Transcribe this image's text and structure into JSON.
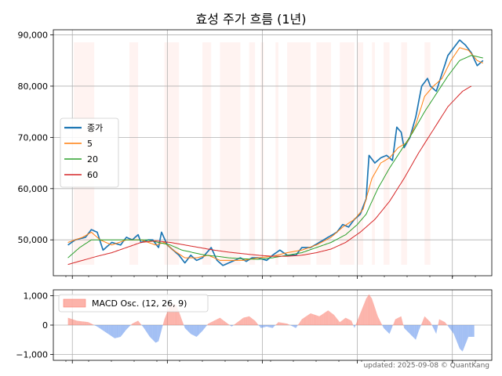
{
  "chart_data": [
    {
      "type": "line",
      "title": "효성 주가 흐름 (1년)",
      "ylim": [
        43000,
        91000
      ],
      "yticks": [
        50000,
        60000,
        70000,
        80000,
        90000
      ],
      "ytick_labels": [
        "50,000",
        "60,000",
        "70,000",
        "80,000",
        "90,000"
      ],
      "grid": true,
      "legend_position": "center-left",
      "x_count": 248,
      "series": [
        {
          "name": "종가",
          "color": "#1f77b4",
          "keypoints": [
            [
              0,
              49000
            ],
            [
              5,
              50000
            ],
            [
              12,
              50500
            ],
            [
              16,
              52000
            ],
            [
              20,
              51500
            ],
            [
              24,
              48000
            ],
            [
              30,
              49500
            ],
            [
              36,
              49000
            ],
            [
              40,
              50500
            ],
            [
              44,
              50000
            ],
            [
              48,
              51000
            ],
            [
              50,
              49500
            ],
            [
              55,
              50000
            ],
            [
              58,
              50000
            ],
            [
              62,
              48500
            ],
            [
              64,
              51500
            ],
            [
              68,
              49000
            ],
            [
              72,
              48000
            ],
            [
              76,
              47000
            ],
            [
              80,
              45500
            ],
            [
              84,
              47000
            ],
            [
              88,
              46000
            ],
            [
              92,
              46500
            ],
            [
              98,
              48500
            ],
            [
              102,
              46000
            ],
            [
              106,
              45000
            ],
            [
              110,
              45500
            ],
            [
              114,
              46000
            ],
            [
              118,
              46500
            ],
            [
              122,
              45800
            ],
            [
              126,
              46500
            ],
            [
              130,
              46500
            ],
            [
              136,
              46000
            ],
            [
              140,
              47000
            ],
            [
              145,
              48000
            ],
            [
              150,
              47000
            ],
            [
              156,
              47000
            ],
            [
              160,
              48500
            ],
            [
              166,
              48500
            ],
            [
              172,
              49500
            ],
            [
              178,
              50500
            ],
            [
              184,
              51500
            ],
            [
              188,
              53000
            ],
            [
              192,
              52500
            ],
            [
              196,
              54000
            ],
            [
              200,
              55000
            ],
            [
              204,
              58000
            ],
            [
              206,
              66500
            ],
            [
              210,
              65000
            ],
            [
              214,
              66000
            ],
            [
              218,
              66500
            ],
            [
              222,
              65500
            ],
            [
              225,
              72000
            ],
            [
              228,
              71000
            ],
            [
              230,
              68000
            ],
            [
              234,
              70000
            ],
            [
              238,
              74000
            ],
            [
              242,
              80000
            ],
            [
              246,
              81500
            ],
            [
              248,
              80000
            ],
            [
              252,
              79000
            ],
            [
              256,
              82500
            ],
            [
              260,
              86000
            ],
            [
              264,
              87500
            ],
            [
              268,
              89000
            ],
            [
              272,
              88000
            ],
            [
              276,
              86500
            ],
            [
              280,
              84000
            ],
            [
              284,
              85000
            ]
          ],
          "width": 1.7
        },
        {
          "name": "5",
          "color": "#ff7f0e",
          "keypoints": [
            [
              0,
              49500
            ],
            [
              10,
              50500
            ],
            [
              16,
              51500
            ],
            [
              22,
              50000
            ],
            [
              30,
              49000
            ],
            [
              40,
              50000
            ],
            [
              50,
              50000
            ],
            [
              60,
              49000
            ],
            [
              66,
              49500
            ],
            [
              72,
              48000
            ],
            [
              80,
              46500
            ],
            [
              88,
              46500
            ],
            [
              96,
              47000
            ],
            [
              104,
              46000
            ],
            [
              112,
              46000
            ],
            [
              120,
              46000
            ],
            [
              130,
              46500
            ],
            [
              140,
              46800
            ],
            [
              150,
              47500
            ],
            [
              160,
              48000
            ],
            [
              170,
              49000
            ],
            [
              180,
              50500
            ],
            [
              188,
              52500
            ],
            [
              196,
              54000
            ],
            [
              202,
              56000
            ],
            [
              208,
              62000
            ],
            [
              214,
              65000
            ],
            [
              220,
              66000
            ],
            [
              226,
              68000
            ],
            [
              232,
              69000
            ],
            [
              238,
              72500
            ],
            [
              244,
              78000
            ],
            [
              250,
              80000
            ],
            [
              256,
              81500
            ],
            [
              262,
              85000
            ],
            [
              268,
              87500
            ],
            [
              274,
              87000
            ],
            [
              280,
              85000
            ],
            [
              284,
              84500
            ]
          ],
          "width": 1.0
        },
        {
          "name": "20",
          "color": "#2ca02c",
          "keypoints": [
            [
              0,
              46500
            ],
            [
              8,
              48500
            ],
            [
              16,
              50000
            ],
            [
              24,
              50000
            ],
            [
              34,
              50000
            ],
            [
              44,
              50000
            ],
            [
              54,
              50000
            ],
            [
              62,
              49500
            ],
            [
              70,
              49000
            ],
            [
              78,
              48000
            ],
            [
              86,
              47500
            ],
            [
              94,
              47000
            ],
            [
              102,
              46800
            ],
            [
              110,
              46500
            ],
            [
              120,
              46300
            ],
            [
              130,
              46200
            ],
            [
              140,
              46500
            ],
            [
              150,
              47000
            ],
            [
              160,
              47500
            ],
            [
              170,
              48500
            ],
            [
              180,
              49500
            ],
            [
              190,
              51000
            ],
            [
              198,
              53000
            ],
            [
              204,
              55000
            ],
            [
              212,
              60000
            ],
            [
              220,
              64000
            ],
            [
              228,
              67500
            ],
            [
              236,
              71000
            ],
            [
              244,
              75000
            ],
            [
              252,
              78500
            ],
            [
              260,
              82000
            ],
            [
              268,
              85000
            ],
            [
              276,
              86000
            ],
            [
              284,
              85500
            ]
          ],
          "width": 1.0
        },
        {
          "name": "60",
          "color": "#d62728",
          "keypoints": [
            [
              0,
              45200
            ],
            [
              10,
              46000
            ],
            [
              20,
              46800
            ],
            [
              30,
              47500
            ],
            [
              40,
              48500
            ],
            [
              50,
              49500
            ],
            [
              60,
              49800
            ],
            [
              70,
              49500
            ],
            [
              80,
              49000
            ],
            [
              90,
              48500
            ],
            [
              100,
              48000
            ],
            [
              110,
              47600
            ],
            [
              120,
              47300
            ],
            [
              130,
              47000
            ],
            [
              140,
              46800
            ],
            [
              150,
              46800
            ],
            [
              160,
              47000
            ],
            [
              170,
              47500
            ],
            [
              180,
              48200
            ],
            [
              190,
              49500
            ],
            [
              200,
              51500
            ],
            [
              210,
              54000
            ],
            [
              220,
              57500
            ],
            [
              230,
              62000
            ],
            [
              240,
              67000
            ],
            [
              250,
              71500
            ],
            [
              260,
              76000
            ],
            [
              270,
              79000
            ],
            [
              276,
              80000
            ]
          ],
          "width": 1.0
        }
      ],
      "shaded_spans": [
        [
          4,
          18
        ],
        [
          42,
          48
        ],
        [
          66,
          76
        ],
        [
          92,
          98
        ],
        [
          104,
          118
        ],
        [
          124,
          128
        ],
        [
          132,
          134
        ],
        [
          142,
          144
        ],
        [
          150,
          166
        ],
        [
          170,
          180
        ],
        [
          186,
          196
        ],
        [
          198,
          202
        ],
        [
          208,
          210
        ],
        [
          216,
          220
        ],
        [
          228,
          232
        ],
        [
          244,
          248
        ]
      ]
    },
    {
      "type": "area",
      "ylim": [
        -1200,
        1200
      ],
      "yticks": [
        -1000,
        0,
        1000
      ],
      "ytick_labels": [
        "−1,000",
        "0",
        "1,000"
      ],
      "grid": true,
      "legend_position": "top-left",
      "series": [
        {
          "name": "MACD Osc. (12, 26, 9)",
          "positive_color": "#fa8072",
          "negative_color": "#6495ed",
          "keypoints": [
            [
              0,
              250
            ],
            [
              6,
              150
            ],
            [
              14,
              100
            ],
            [
              20,
              -50
            ],
            [
              26,
              -250
            ],
            [
              32,
              -450
            ],
            [
              36,
              -400
            ],
            [
              40,
              -150
            ],
            [
              44,
              50
            ],
            [
              48,
              150
            ],
            [
              52,
              -100
            ],
            [
              56,
              -400
            ],
            [
              60,
              -600
            ],
            [
              62,
              -550
            ],
            [
              66,
              200
            ],
            [
              70,
              700
            ],
            [
              74,
              700
            ],
            [
              76,
              450
            ],
            [
              80,
              -100
            ],
            [
              84,
              -300
            ],
            [
              88,
              -400
            ],
            [
              92,
              -200
            ],
            [
              96,
              50
            ],
            [
              100,
              150
            ],
            [
              104,
              250
            ],
            [
              108,
              100
            ],
            [
              112,
              -50
            ],
            [
              116,
              100
            ],
            [
              120,
              250
            ],
            [
              124,
              300
            ],
            [
              128,
              150
            ],
            [
              132,
              -100
            ],
            [
              136,
              -50
            ],
            [
              140,
              -100
            ],
            [
              144,
              100
            ],
            [
              150,
              50
            ],
            [
              156,
              -100
            ],
            [
              160,
              200
            ],
            [
              166,
              400
            ],
            [
              172,
              300
            ],
            [
              178,
              500
            ],
            [
              182,
              350
            ],
            [
              186,
              100
            ],
            [
              190,
              250
            ],
            [
              194,
              150
            ],
            [
              196,
              -100
            ],
            [
              200,
              400
            ],
            [
              204,
              900
            ],
            [
              206,
              1050
            ],
            [
              208,
              900
            ],
            [
              212,
              300
            ],
            [
              216,
              -100
            ],
            [
              220,
              -300
            ],
            [
              224,
              200
            ],
            [
              228,
              300
            ],
            [
              230,
              -100
            ],
            [
              234,
              -300
            ],
            [
              238,
              -500
            ],
            [
              240,
              -200
            ],
            [
              244,
              300
            ],
            [
              248,
              100
            ],
            [
              252,
              -300
            ],
            [
              254,
              200
            ],
            [
              258,
              100
            ],
            [
              264,
              -300
            ],
            [
              268,
              -800
            ],
            [
              270,
              -900
            ],
            [
              274,
              -400
            ],
            [
              278,
              -400
            ]
          ]
        }
      ]
    }
  ],
  "footer": "updated: 2025-09-08 © QuantKang"
}
